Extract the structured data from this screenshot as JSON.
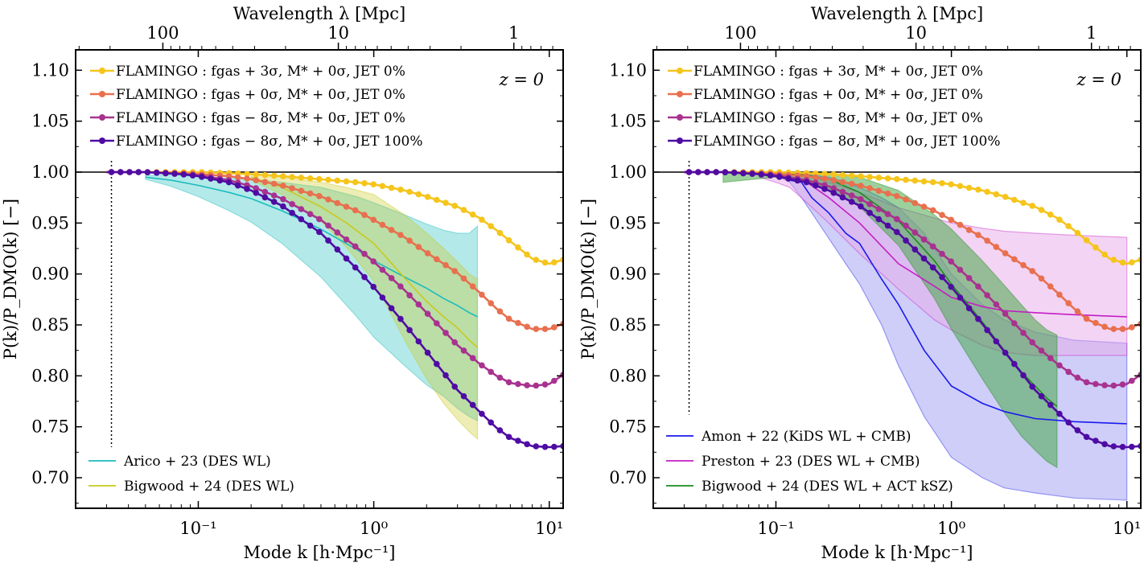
{
  "chart_data": [
    {
      "type": "line",
      "panel": "left",
      "xscale": "log",
      "xlim": [
        0.02,
        12
      ],
      "ylim": [
        0.67,
        1.12
      ],
      "xlabel": "Mode k [h·Mpc⁻¹]",
      "ylabel": "P(k)/P_DMO(k) [−]",
      "top_xlabel": "Wavelength λ [Mpc]",
      "top_ticks": [
        "100",
        "10",
        "1"
      ],
      "yticks": [
        "0.70",
        "0.75",
        "0.80",
        "0.85",
        "0.90",
        "0.95",
        "1.00",
        "1.05",
        "1.10"
      ],
      "xticks": [
        "10⁻¹",
        "10⁰",
        "10¹"
      ],
      "annotation": "z = 0",
      "legend_top": "top-left",
      "legend_bottom": "bottom-left",
      "series": [
        {
          "name": "FLAMINGO :  fgas + 3σ, M* + 0σ, JET 0%",
          "color": "#f5c51c",
          "x": [
            0.03,
            0.05,
            0.08,
            0.1,
            0.15,
            0.2,
            0.3,
            0.5,
            0.8,
            1.0,
            1.5,
            2,
            3,
            4,
            5,
            6,
            8,
            10,
            12
          ],
          "y": [
            1.0,
            1.0,
            1.0,
            1.0,
            0.999,
            0.998,
            0.996,
            0.993,
            0.99,
            0.988,
            0.982,
            0.976,
            0.966,
            0.955,
            0.943,
            0.932,
            0.915,
            0.91,
            0.914
          ]
        },
        {
          "name": "FLAMINGO :  fgas + 0σ, M* + 0σ, JET 0%",
          "color": "#e8704f",
          "x": [
            0.03,
            0.05,
            0.08,
            0.1,
            0.15,
            0.2,
            0.3,
            0.5,
            0.8,
            1.0,
            1.5,
            2,
            3,
            4,
            5,
            6,
            8,
            10,
            12
          ],
          "y": [
            1.0,
            1.0,
            0.999,
            0.998,
            0.996,
            0.993,
            0.987,
            0.976,
            0.962,
            0.953,
            0.936,
            0.921,
            0.901,
            0.882,
            0.866,
            0.855,
            0.846,
            0.846,
            0.851
          ]
        },
        {
          "name": "FLAMINGO :  fgas − 8σ, M* + 0σ, JET 0%",
          "color": "#a8328f",
          "x": [
            0.03,
            0.05,
            0.08,
            0.1,
            0.15,
            0.2,
            0.3,
            0.5,
            0.8,
            1.0,
            1.5,
            2,
            3,
            4,
            5,
            6,
            8,
            10,
            12
          ],
          "y": [
            1.0,
            1.0,
            0.998,
            0.997,
            0.992,
            0.986,
            0.974,
            0.953,
            0.926,
            0.912,
            0.884,
            0.862,
            0.83,
            0.812,
            0.8,
            0.793,
            0.79,
            0.792,
            0.801
          ]
        },
        {
          "name": "FLAMINGO :  fgas − 8σ, M* + 0σ, JET 100%",
          "color": "#4f0ca3",
          "x": [
            0.03,
            0.05,
            0.08,
            0.1,
            0.15,
            0.2,
            0.3,
            0.5,
            0.8,
            1.0,
            1.5,
            2,
            3,
            4,
            5,
            6,
            8,
            10,
            12
          ],
          "y": [
            1.0,
            1.0,
            0.998,
            0.996,
            0.99,
            0.982,
            0.967,
            0.94,
            0.905,
            0.887,
            0.851,
            0.824,
            0.786,
            0.765,
            0.749,
            0.739,
            0.731,
            0.73,
            0.731
          ]
        }
      ],
      "bands": [
        {
          "name": "Arico + 23  (DES WL)",
          "color": "#1bbcbc",
          "x": [
            0.05,
            0.07,
            0.1,
            0.15,
            0.2,
            0.3,
            0.5,
            0.8,
            1.0,
            1.5,
            2,
            2.5,
            3,
            3.5,
            3.9
          ],
          "mid": [
            0.995,
            0.992,
            0.987,
            0.98,
            0.974,
            0.962,
            0.944,
            0.924,
            0.913,
            0.897,
            0.886,
            0.876,
            0.869,
            0.862,
            0.858
          ],
          "lo": [
            0.993,
            0.986,
            0.976,
            0.962,
            0.951,
            0.93,
            0.897,
            0.858,
            0.838,
            0.81,
            0.791,
            0.78,
            0.768,
            0.76,
            0.756
          ],
          "hi": [
            0.997,
            0.997,
            0.996,
            0.994,
            0.993,
            0.99,
            0.985,
            0.976,
            0.97,
            0.958,
            0.949,
            0.943,
            0.94,
            0.94,
            0.947
          ]
        },
        {
          "name": "Bigwood + 24  (DES WL)",
          "color": "#c9c91e",
          "x": [
            0.2,
            0.3,
            0.5,
            0.7,
            1.0,
            1.5,
            2,
            2.5,
            3,
            3.5,
            3.9
          ],
          "mid": [
            0.995,
            0.985,
            0.966,
            0.95,
            0.93,
            0.896,
            0.873,
            0.858,
            0.847,
            0.835,
            0.828
          ],
          "lo": [
            0.992,
            0.978,
            0.952,
            0.926,
            0.893,
            0.835,
            0.797,
            0.773,
            0.757,
            0.745,
            0.738
          ],
          "hi": [
            0.998,
            0.995,
            0.99,
            0.985,
            0.978,
            0.958,
            0.94,
            0.925,
            0.912,
            0.9,
            0.895
          ],
          "overlap_color": "#5cc77a"
        }
      ],
      "dotted_line_x": 0.032
    },
    {
      "type": "line",
      "panel": "right",
      "xscale": "log",
      "xlim": [
        0.02,
        12
      ],
      "ylim": [
        0.67,
        1.12
      ],
      "xlabel": "Mode k [h·Mpc⁻¹]",
      "ylabel": "P(k)/P_DMO(k) [−]",
      "top_xlabel": "Wavelength λ [Mpc]",
      "top_ticks": [
        "100",
        "10",
        "1"
      ],
      "yticks": [
        "0.70",
        "0.75",
        "0.80",
        "0.85",
        "0.90",
        "0.95",
        "1.00",
        "1.05",
        "1.10"
      ],
      "xticks": [
        "10⁻¹",
        "10⁰",
        "10¹"
      ],
      "annotation": "z = 0",
      "legend_top": "top-left",
      "legend_bottom": "bottom-left",
      "series": [
        {
          "name": "FLAMINGO :  fgas + 3σ, M* + 0σ, JET 0%",
          "color": "#f5c51c",
          "x": [
            0.03,
            0.05,
            0.08,
            0.1,
            0.15,
            0.2,
            0.3,
            0.5,
            0.8,
            1.0,
            1.5,
            2,
            3,
            4,
            5,
            6,
            8,
            10,
            12
          ],
          "y": [
            1.0,
            1.0,
            1.0,
            1.0,
            0.999,
            0.998,
            0.996,
            0.993,
            0.99,
            0.988,
            0.982,
            0.976,
            0.966,
            0.955,
            0.943,
            0.932,
            0.915,
            0.91,
            0.914
          ]
        },
        {
          "name": "FLAMINGO :  fgas + 0σ, M* + 0σ, JET 0%",
          "color": "#e8704f",
          "x": [
            0.03,
            0.05,
            0.08,
            0.1,
            0.15,
            0.2,
            0.3,
            0.5,
            0.8,
            1.0,
            1.5,
            2,
            3,
            4,
            5,
            6,
            8,
            10,
            12
          ],
          "y": [
            1.0,
            1.0,
            0.999,
            0.998,
            0.996,
            0.993,
            0.987,
            0.976,
            0.962,
            0.953,
            0.936,
            0.921,
            0.901,
            0.882,
            0.866,
            0.855,
            0.846,
            0.846,
            0.851
          ]
        },
        {
          "name": "FLAMINGO :  fgas − 8σ, M* + 0σ, JET 0%",
          "color": "#a8328f",
          "x": [
            0.03,
            0.05,
            0.08,
            0.1,
            0.15,
            0.2,
            0.3,
            0.5,
            0.8,
            1.0,
            1.5,
            2,
            3,
            4,
            5,
            6,
            8,
            10,
            12
          ],
          "y": [
            1.0,
            1.0,
            0.998,
            0.997,
            0.992,
            0.986,
            0.974,
            0.953,
            0.926,
            0.912,
            0.884,
            0.862,
            0.83,
            0.812,
            0.8,
            0.793,
            0.79,
            0.792,
            0.801
          ]
        },
        {
          "name": "FLAMINGO :  fgas − 8σ, M* + 0σ, JET 100%",
          "color": "#4f0ca3",
          "x": [
            0.03,
            0.05,
            0.08,
            0.1,
            0.15,
            0.2,
            0.3,
            0.5,
            0.8,
            1.0,
            1.5,
            2,
            3,
            4,
            5,
            6,
            8,
            10,
            12
          ],
          "y": [
            1.0,
            1.0,
            0.998,
            0.996,
            0.99,
            0.982,
            0.967,
            0.94,
            0.905,
            0.887,
            0.851,
            0.824,
            0.786,
            0.765,
            0.749,
            0.739,
            0.731,
            0.73,
            0.731
          ]
        }
      ],
      "bands": [
        {
          "name": "Amon + 22  (KiDS WL + CMB)",
          "color": "#1a1aee",
          "fill": "#9d9df2",
          "x": [
            0.1,
            0.12,
            0.14,
            0.16,
            0.2,
            0.25,
            0.3,
            0.4,
            0.5,
            0.7,
            1.0,
            1.5,
            2,
            3,
            5,
            10
          ],
          "mid": [
            0.998,
            0.992,
            0.99,
            0.975,
            0.96,
            0.94,
            0.93,
            0.895,
            0.87,
            0.825,
            0.79,
            0.773,
            0.765,
            0.758,
            0.755,
            0.753
          ],
          "lo": [
            0.997,
            0.99,
            0.975,
            0.96,
            0.935,
            0.91,
            0.89,
            0.85,
            0.81,
            0.76,
            0.72,
            0.7,
            0.69,
            0.685,
            0.68,
            0.678
          ],
          "hi": [
            1.0,
            0.999,
            0.998,
            0.997,
            0.995,
            0.99,
            0.985,
            0.975,
            0.965,
            0.94,
            0.9,
            0.87,
            0.855,
            0.843,
            0.835,
            0.832
          ]
        },
        {
          "name": "Preston + 23  (DES WL + CMB)",
          "color": "#c41ec4",
          "fill": "#e7a9ea",
          "x": [
            0.08,
            0.1,
            0.12,
            0.15,
            0.2,
            0.3,
            0.5,
            0.8,
            1.0,
            1.5,
            2,
            3,
            5,
            10
          ],
          "mid": [
            0.998,
            0.997,
            0.995,
            0.99,
            0.975,
            0.95,
            0.91,
            0.888,
            0.877,
            0.868,
            0.864,
            0.862,
            0.86,
            0.858
          ],
          "lo": [
            0.995,
            0.99,
            0.985,
            0.97,
            0.95,
            0.92,
            0.885,
            0.855,
            0.845,
            0.83,
            0.823,
            0.82,
            0.82,
            0.82
          ],
          "hi": [
            1.0,
            1.0,
            0.999,
            0.997,
            0.99,
            0.98,
            0.965,
            0.955,
            0.95,
            0.945,
            0.942,
            0.94,
            0.938,
            0.936
          ]
        },
        {
          "name": "Bigwood + 24  (DES WL + ACT kSZ)",
          "color": "#1d8a1d",
          "fill": "#3aa43a",
          "x": [
            0.05,
            0.1,
            0.15,
            0.2,
            0.3,
            0.5,
            0.8,
            1.0,
            1.5,
            2,
            2.5,
            3,
            3.5,
            4
          ],
          "mid": [
            1.0,
            0.999,
            0.997,
            0.993,
            0.98,
            0.952,
            0.913,
            0.89,
            0.853,
            0.825,
            0.804,
            0.79,
            0.778,
            0.77
          ],
          "lo": [
            0.99,
            0.995,
            0.99,
            0.984,
            0.966,
            0.928,
            0.876,
            0.846,
            0.797,
            0.764,
            0.741,
            0.727,
            0.716,
            0.71
          ],
          "hi": [
            1.0,
            1.0,
            1.0,
            0.999,
            0.995,
            0.982,
            0.958,
            0.944,
            0.913,
            0.889,
            0.87,
            0.855,
            0.845,
            0.84
          ]
        }
      ],
      "dotted_line_x": 0.032
    }
  ]
}
